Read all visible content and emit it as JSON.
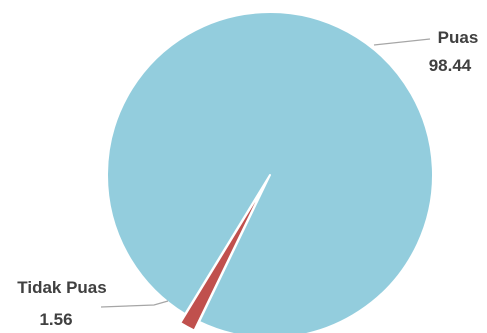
{
  "chart_data": {
    "type": "pie",
    "slices": [
      {
        "label": "Puas",
        "value": 98.44,
        "display": "98.44",
        "color": "#93CDDD"
      },
      {
        "label": "Tidak Puas",
        "value": 1.56,
        "display": "1.56",
        "color": "#C0504D"
      }
    ],
    "title": "",
    "legend": "none",
    "slice_border_color": "#ffffff",
    "leader_line_color": "#a6a6a6"
  }
}
